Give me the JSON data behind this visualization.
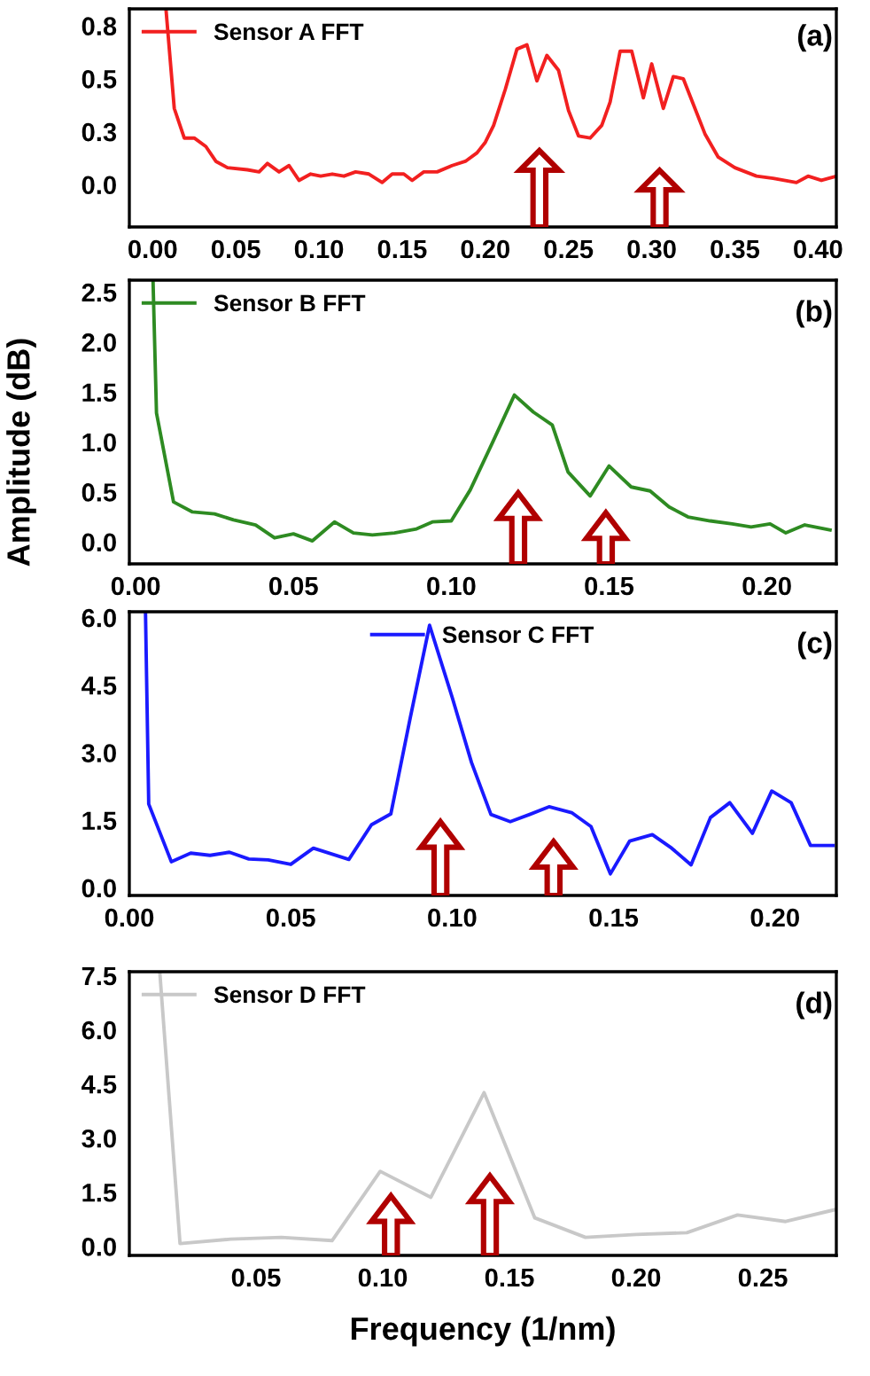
{
  "chart_data": [
    {
      "type": "line",
      "xlim": [
        -0.014,
        0.411
      ],
      "xticks": [
        {
          "value": 0,
          "label": "0.00"
        },
        0.05,
        {
          "value": 0.1,
          "label": "0.10"
        },
        0.15,
        {
          "value": 0.2,
          "label": "0.20"
        },
        0.25,
        {
          "value": 0.3,
          "label": "0.30"
        },
        0.35,
        {
          "value": 0.4,
          "label": "0.40"
        }
      ],
      "ylim": [
        -0.2,
        0.83
      ],
      "yticks": [
        {
          "value": 0,
          "label": "0.0"
        },
        {
          "value": 0.25,
          "label": "0.3"
        },
        {
          "value": 0.5,
          "label": "0.5"
        },
        {
          "value": 0.75,
          "label": "0.8"
        }
      ],
      "legend": "top left",
      "grid": false,
      "annotations": [
        "(a)"
      ],
      "x": [
        0.008,
        0.013,
        0.019,
        0.025,
        0.032,
        0.038,
        0.045,
        0.057,
        0.064,
        0.069,
        0.076,
        0.082,
        0.088,
        0.095,
        0.101,
        0.108,
        0.115,
        0.122,
        0.13,
        0.138,
        0.144,
        0.151,
        0.156,
        0.163,
        0.171,
        0.18,
        0.188,
        0.195,
        0.2,
        0.205,
        0.212,
        0.219,
        0.225,
        0.231,
        0.237,
        0.244,
        0.25,
        0.256,
        0.263,
        0.27,
        0.275,
        0.281,
        0.288,
        0.295,
        0.3,
        0.307,
        0.313,
        0.319,
        0.326,
        0.332,
        0.34,
        0.35,
        0.363,
        0.373,
        0.387,
        0.394,
        0.402,
        0.411
      ],
      "series": [
        {
          "name": "Sensor A FFT",
          "color": "#f22020",
          "values": [
            0.83,
            0.36,
            0.22,
            0.22,
            0.18,
            0.11,
            0.08,
            0.07,
            0.06,
            0.1,
            0.06,
            0.09,
            0.02,
            0.05,
            0.04,
            0.05,
            0.04,
            0.06,
            0.05,
            0.01,
            0.05,
            0.05,
            0.02,
            0.06,
            0.06,
            0.09,
            0.11,
            0.15,
            0.2,
            0.28,
            0.45,
            0.64,
            0.66,
            0.49,
            0.61,
            0.54,
            0.35,
            0.23,
            0.22,
            0.28,
            0.39,
            0.63,
            0.63,
            0.41,
            0.57,
            0.36,
            0.51,
            0.5,
            0.36,
            0.24,
            0.13,
            0.08,
            0.04,
            0.03,
            0.01,
            0.04,
            0.02,
            0.04
          ]
        }
      ]
    },
    {
      "type": "line",
      "xlim": [
        -0.002,
        0.222
      ],
      "xticks": [
        {
          "value": 0,
          "label": "0.00"
        },
        0.05,
        {
          "value": 0.1,
          "label": "0.10"
        },
        0.15,
        {
          "value": 0.2,
          "label": "0.20"
        }
      ],
      "ylim": [
        -0.22,
        2.62
      ],
      "yticks": [
        {
          "value": 0,
          "label": "0.0"
        },
        0.5,
        {
          "value": 1,
          "label": "1.0"
        },
        1.5,
        {
          "value": 2,
          "label": "2.0"
        },
        2.5
      ],
      "legend": "top left",
      "grid": false,
      "annotations": [
        "(b)"
      ],
      "ylabel": "Amplitude (dB)",
      "x": [
        0.0055,
        0.0066,
        0.012,
        0.018,
        0.025,
        0.031,
        0.038,
        0.044,
        0.05,
        0.056,
        0.063,
        0.069,
        0.075,
        0.082,
        0.089,
        0.094,
        0.1,
        0.106,
        0.113,
        0.12,
        0.126,
        0.132,
        0.137,
        0.144,
        0.15,
        0.157,
        0.163,
        0.169,
        0.175,
        0.182,
        0.189,
        0.195,
        0.201,
        0.206,
        0.212,
        0.22
      ],
      "series": [
        {
          "name": "Sensor B FFT",
          "color": "#2e8b22",
          "values": [
            2.62,
            1.29,
            0.4,
            0.3,
            0.28,
            0.22,
            0.17,
            0.04,
            0.08,
            0.01,
            0.2,
            0.09,
            0.07,
            0.09,
            0.13,
            0.2,
            0.21,
            0.52,
            0.99,
            1.47,
            1.3,
            1.17,
            0.7,
            0.46,
            0.76,
            0.55,
            0.51,
            0.35,
            0.25,
            0.21,
            0.18,
            0.15,
            0.18,
            0.09,
            0.17,
            0.12
          ]
        }
      ]
    },
    {
      "type": "line",
      "xlim": [
        0,
        0.219
      ],
      "xticks": [
        {
          "value": 0,
          "label": "0.00"
        },
        0.05,
        {
          "value": 0.1,
          "label": "0.10"
        },
        0.15,
        {
          "value": 0.2,
          "label": "0.20"
        }
      ],
      "ylim": [
        -0.17,
        6.13
      ],
      "yticks": [
        {
          "value": 0,
          "label": "0.0"
        },
        1.5,
        {
          "value": 3,
          "label": "3.0"
        },
        4.5,
        {
          "value": 6,
          "label": "6.0"
        }
      ],
      "legend": "top",
      "grid": false,
      "annotations": [
        "(c)"
      ],
      "x": [
        0.005,
        0.006,
        0.013,
        0.019,
        0.025,
        0.031,
        0.037,
        0.043,
        0.05,
        0.057,
        0.068,
        0.075,
        0.081,
        0.087,
        0.093,
        0.1,
        0.106,
        0.112,
        0.118,
        0.124,
        0.13,
        0.137,
        0.143,
        0.149,
        0.155,
        0.162,
        0.168,
        0.174,
        0.18,
        0.186,
        0.193,
        0.199,
        0.205,
        0.211,
        0.218
      ],
      "series": [
        {
          "name": "Sensor C FFT",
          "color": "#1a1aff",
          "values": [
            6.13,
            1.86,
            0.58,
            0.77,
            0.72,
            0.79,
            0.64,
            0.62,
            0.52,
            0.88,
            0.63,
            1.4,
            1.64,
            3.77,
            5.83,
            4.23,
            2.78,
            1.63,
            1.47,
            1.63,
            1.8,
            1.67,
            1.36,
            0.31,
            1.04,
            1.18,
            0.88,
            0.51,
            1.56,
            1.89,
            1.21,
            2.15,
            1.89,
            0.94,
            0.94
          ]
        }
      ]
    },
    {
      "type": "line",
      "xlim": [
        0,
        0.279
      ],
      "xticks": [
        0.05,
        {
          "value": 0.1,
          "label": "0.10"
        },
        0.15,
        {
          "value": 0.2,
          "label": "0.20"
        },
        0.25
      ],
      "ylim": [
        -0.25,
        7.61
      ],
      "yticks": [
        {
          "value": 0,
          "label": "0.0"
        },
        1.5,
        {
          "value": 3,
          "label": "3.0"
        },
        4.5,
        {
          "value": 6,
          "label": "6.0"
        },
        7.5
      ],
      "legend": "top left",
      "grid": false,
      "annotations": [
        "(d)"
      ],
      "xlabel": "Frequency (1/nm)",
      "x": [
        0.012,
        0.02,
        0.04,
        0.06,
        0.08,
        0.099,
        0.119,
        0.14,
        0.16,
        0.18,
        0.2,
        0.22,
        0.24,
        0.259,
        0.278
      ],
      "series": [
        {
          "name": "Sensor D FFT",
          "color": "#c8c8c8",
          "values": [
            7.61,
            0.08,
            0.2,
            0.25,
            0.16,
            2.08,
            1.36,
            4.26,
            0.79,
            0.25,
            0.33,
            0.38,
            0.87,
            0.69,
            1.01
          ]
        }
      ]
    }
  ]
}
